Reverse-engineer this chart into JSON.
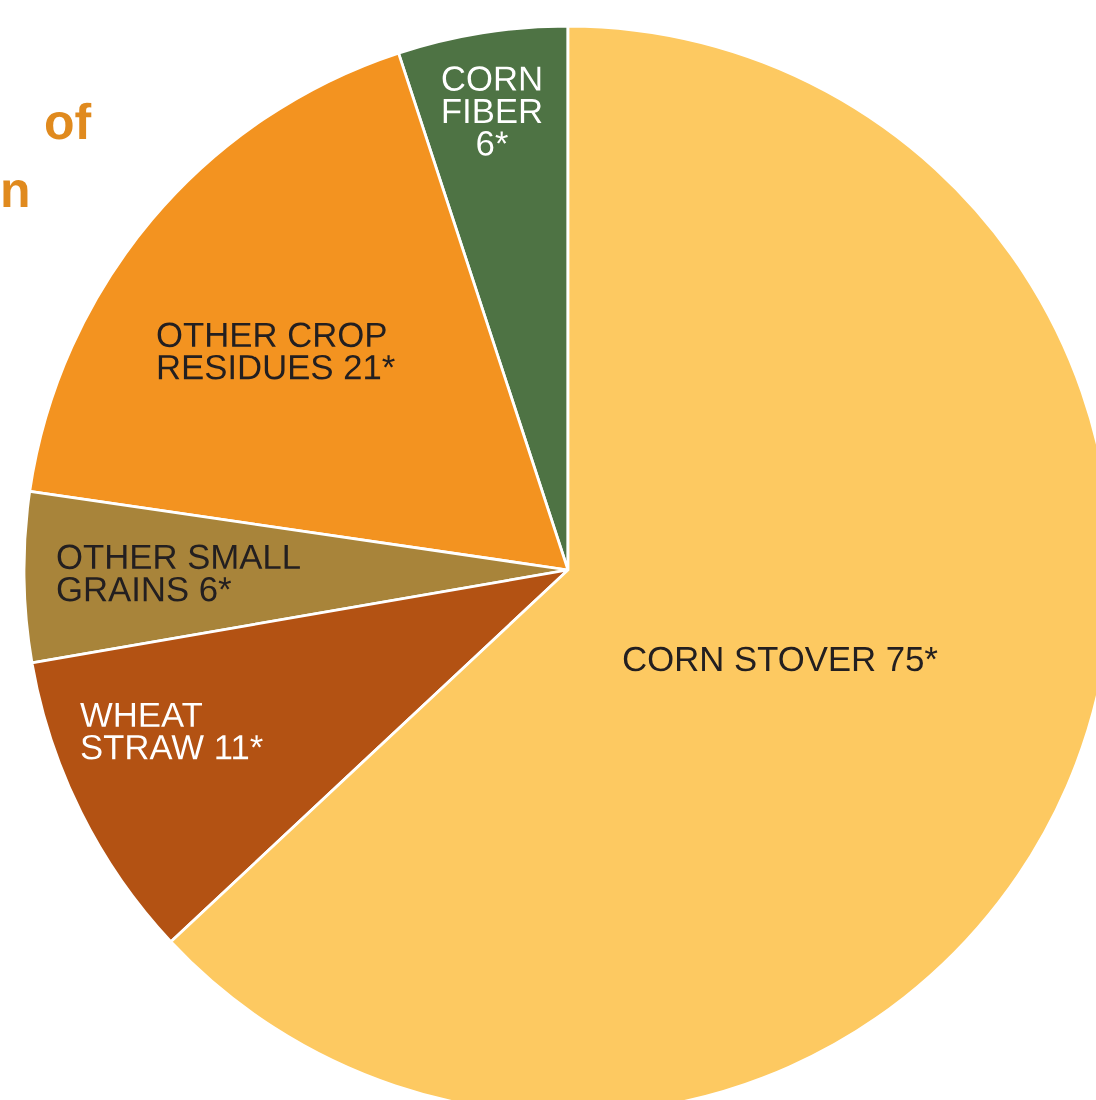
{
  "chart_data": {
    "type": "pie",
    "categories": [
      "CORN\nFIBER",
      "OTHER CROP\nRESIDUES",
      "OTHER SMALL\nGRAINS",
      "WHEAT\nSTRAW",
      "CORN STOVER"
    ],
    "values": [
      6,
      21,
      6,
      11,
      75
    ],
    "value_labels": [
      "6*",
      "21*",
      "6*",
      "11*",
      "75*"
    ],
    "colors": [
      "#4e7344",
      "#f39320",
      "#a8843a",
      "#b35213",
      "#fdc961"
    ],
    "annotations": [
      "of",
      "n"
    ]
  }
}
